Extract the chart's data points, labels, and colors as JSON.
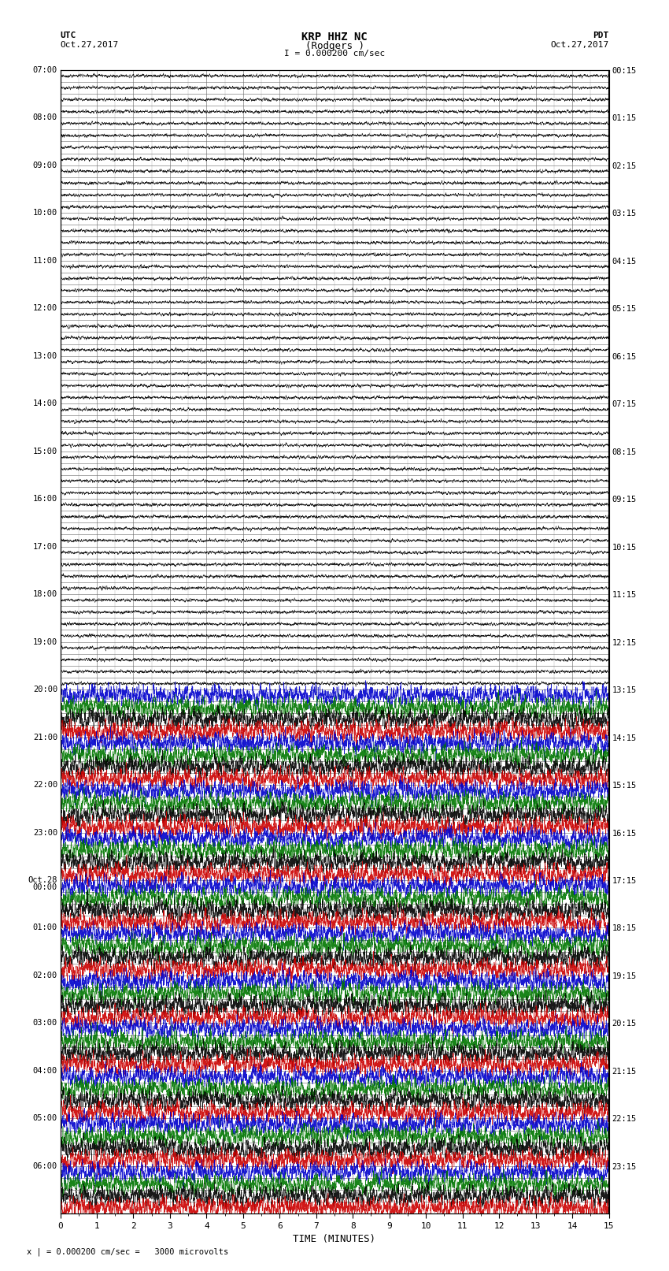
{
  "title_line1": "KRP HHZ NC",
  "title_line2": "(Rodgers )",
  "title_line3": "I = 0.000200 cm/sec",
  "left_label": "UTC",
  "left_date": "Oct.27,2017",
  "right_label": "PDT",
  "right_date": "Oct.27,2017",
  "xlabel": "TIME (MINUTES)",
  "footer": "x | = 0.000200 cm/sec =   3000 microvolts",
  "utc_times": [
    "07:00",
    "",
    "",
    "",
    "08:00",
    "",
    "",
    "",
    "09:00",
    "",
    "",
    "",
    "10:00",
    "",
    "",
    "",
    "11:00",
    "",
    "",
    "",
    "12:00",
    "",
    "",
    "",
    "13:00",
    "",
    "",
    "",
    "14:00",
    "",
    "",
    "",
    "15:00",
    "",
    "",
    "",
    "16:00",
    "",
    "",
    "",
    "17:00",
    "",
    "",
    "",
    "18:00",
    "",
    "",
    "",
    "19:00",
    "",
    "",
    "",
    "20:00",
    "",
    "",
    "",
    "21:00",
    "",
    "",
    "",
    "22:00",
    "",
    "",
    "",
    "23:00",
    "",
    "",
    "",
    "Oct.28\n00:00",
    "",
    "",
    "",
    "01:00",
    "",
    "",
    "",
    "02:00",
    "",
    "",
    "",
    "03:00",
    "",
    "",
    "",
    "04:00",
    "",
    "",
    "",
    "05:00",
    "",
    "",
    "",
    "06:00",
    "",
    "",
    ""
  ],
  "utc_major_labels": [
    "07:00",
    "08:00",
    "09:00",
    "10:00",
    "11:00",
    "12:00",
    "13:00",
    "14:00",
    "15:00",
    "16:00",
    "17:00",
    "18:00",
    "19:00",
    "20:00",
    "21:00",
    "22:00",
    "23:00",
    "Oct.28\n00:00",
    "01:00",
    "02:00",
    "03:00",
    "04:00",
    "05:00",
    "06:00"
  ],
  "pdt_major_labels": [
    "00:15",
    "01:15",
    "02:15",
    "03:15",
    "04:15",
    "05:15",
    "06:15",
    "07:15",
    "08:15",
    "09:15",
    "10:15",
    "11:15",
    "12:15",
    "13:15",
    "14:15",
    "15:15",
    "16:15",
    "17:15",
    "18:15",
    "19:15",
    "20:15",
    "21:15",
    "22:15",
    "23:15"
  ],
  "n_hours": 24,
  "traces_per_hour": 4,
  "quiet_hours": 13,
  "xmin": 0,
  "xmax": 15,
  "background": "#ffffff",
  "grid_color": "#666666",
  "trace_colors_active": [
    "#0000cc",
    "#007700",
    "#000000",
    "#cc0000"
  ],
  "trace_color_quiet": "#000000",
  "figwidth": 8.5,
  "figheight": 16.13,
  "dpi": 100
}
